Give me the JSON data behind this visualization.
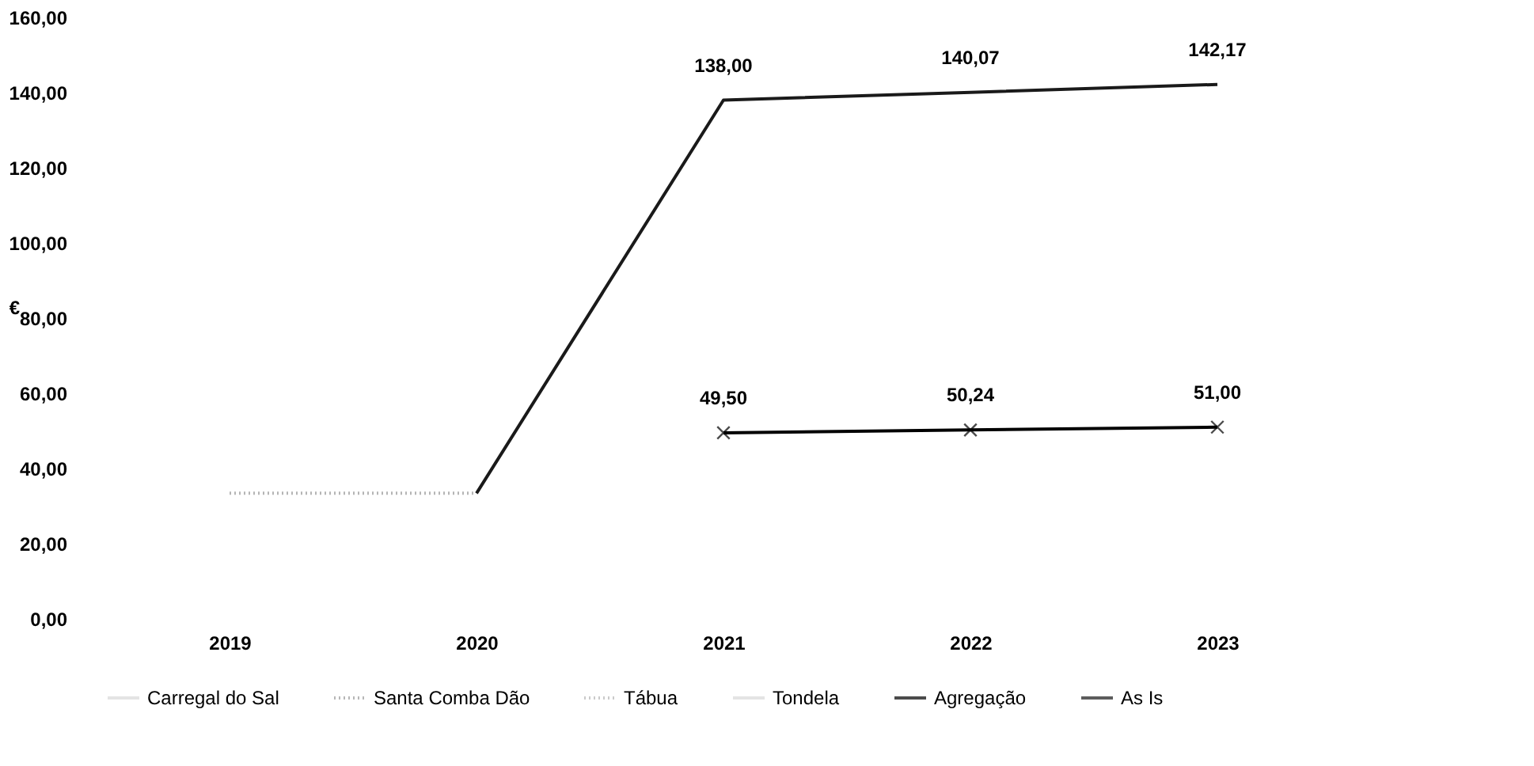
{
  "chart_data": {
    "type": "line",
    "ylabel": "€",
    "categories": [
      "2019",
      "2020",
      "2021",
      "2022",
      "2023"
    ],
    "series": [
      {
        "name": "Carregal do Sal",
        "color": "#d9d9d9",
        "line_style": "solid",
        "values": [
          null,
          null,
          null,
          null,
          null
        ]
      },
      {
        "name": "Santa Comba Dão",
        "color": "#9a9a9a",
        "line_style": "dotted",
        "values": [
          null,
          null,
          null,
          null,
          null
        ]
      },
      {
        "name": "Tábua",
        "color": "#b5b5b5",
        "line_style": "dotted",
        "values": [
          33.4,
          33.4,
          null,
          null,
          null
        ]
      },
      {
        "name": "Tondela",
        "color": "#d9d9d9",
        "line_style": "solid",
        "values": [
          null,
          null,
          null,
          null,
          null
        ]
      },
      {
        "name": "Agregação",
        "color": "#000000",
        "line_style": "solid",
        "marker": "cross",
        "values": [
          null,
          null,
          49.5,
          50.24,
          51.0
        ],
        "value_labels": [
          null,
          null,
          "49,50",
          "50,24",
          "51,00"
        ]
      },
      {
        "name": "As Is",
        "color": "#1a1a1a",
        "line_style": "solid",
        "values": [
          null,
          33.4,
          138.0,
          140.07,
          142.17
        ],
        "value_labels": [
          null,
          null,
          "138,00",
          "140,07",
          "142,17"
        ]
      }
    ],
    "ylim": [
      0,
      160
    ],
    "yticks": [
      {
        "value": 0,
        "label": "0,00"
      },
      {
        "value": 20,
        "label": "20,00"
      },
      {
        "value": 40,
        "label": "40,00"
      },
      {
        "value": 60,
        "label": "60,00"
      },
      {
        "value": 80,
        "label": "80,00"
      },
      {
        "value": 100,
        "label": "100,00"
      },
      {
        "value": 120,
        "label": "120,00"
      },
      {
        "value": 140,
        "label": "140,00"
      },
      {
        "value": 160,
        "label": "160,00"
      }
    ],
    "grid": false,
    "legend": "bottom"
  }
}
